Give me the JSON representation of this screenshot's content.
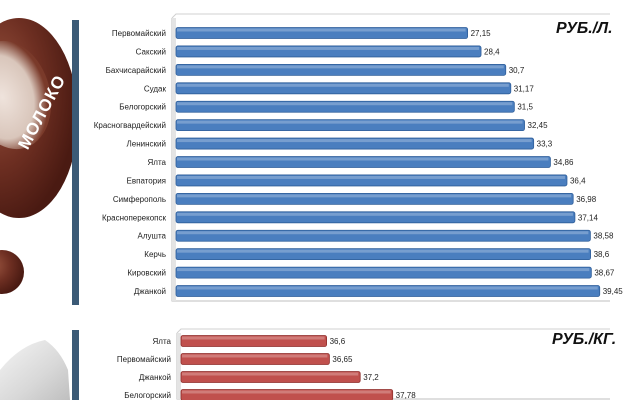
{
  "side_labels": {
    "milk": "МОЛОКО"
  },
  "colors": {
    "milk_bar": "#4a7ebf",
    "second_bar": "#c0504d",
    "side_bar": "#3b5a76"
  },
  "chart_data": [
    {
      "type": "bar",
      "orientation": "horizontal",
      "unit_label": "РУБ./Л.",
      "categories": [
        "Первомайский",
        "Сакский",
        "Бахчисарайский",
        "Судак",
        "Белогорский",
        "Красногвардейский",
        "Ленинский",
        "Ялта",
        "Евпатория",
        "Симферополь",
        "Красноперекопск",
        "Алушта",
        "Керчь",
        "Кировский",
        "Джанкой"
      ],
      "values": [
        27.15,
        28.4,
        30.7,
        31.17,
        31.5,
        32.45,
        33.3,
        34.86,
        36.4,
        36.98,
        37.14,
        38.58,
        38.6,
        38.67,
        39.45
      ],
      "value_labels": [
        "27,15",
        "28,4",
        "30,7",
        "31,17",
        "31,5",
        "32,45",
        "33,3",
        "34,86",
        "36,4",
        "36,98",
        "37,14",
        "38,58",
        "38,6",
        "38,67",
        "39,45"
      ],
      "xlim": [
        0,
        40.5
      ],
      "grid": false
    },
    {
      "type": "bar",
      "orientation": "horizontal",
      "unit_label": "РУБ./КГ.",
      "categories": [
        "Ялта",
        "Первомайский",
        "Джанкой",
        "Белогорский"
      ],
      "values": [
        36.6,
        36.65,
        37.2,
        37.78
      ],
      "value_labels": [
        "36,6",
        "36,65",
        "37,2",
        "37,78"
      ],
      "xlim": [
        34,
        41
      ],
      "grid": false
    }
  ]
}
